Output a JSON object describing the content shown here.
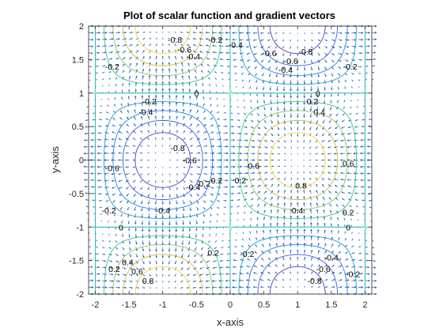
{
  "chart_data": {
    "type": "contour-quiver",
    "title": "Plot of scalar function and gradient vectors",
    "xlabel": "x-axis",
    "ylabel": "y-axis",
    "xlim": [
      -2.1,
      2.1
    ],
    "ylim": [
      -2,
      2
    ],
    "xticks": [
      -2,
      -1.5,
      -1,
      -0.5,
      0,
      0.5,
      1,
      1.5,
      2
    ],
    "xtick_labels": [
      "-2",
      "-1.5",
      "-1",
      "-0.5",
      "0",
      "0.5",
      "1",
      "1.5",
      "2"
    ],
    "yticks": [
      -2,
      -1.5,
      -1,
      -0.5,
      0,
      0.5,
      1,
      1.5,
      2
    ],
    "ytick_labels": [
      "-2",
      "-1.5",
      "-1",
      "-0.5",
      "0",
      "0.5",
      "1",
      "1.5",
      "2"
    ],
    "grid": false,
    "contour_levels": [
      -0.8,
      -0.6,
      -0.4,
      -0.2,
      0,
      0.2,
      0.4,
      0.6,
      0.8
    ],
    "contour_colors": {
      "-0.8": "#4a3fbd",
      "-0.6": "#3e5ee0",
      "-0.4": "#2f7ee8",
      "-0.2": "#1f9bd6",
      "0": "#1fb2b0",
      "0.2": "#3fc188",
      "0.4": "#8cc656",
      "0.6": "#cdbb3c",
      "0.8": "#f5d42a"
    },
    "quiver_color": "#1f5fb8",
    "quiver_grid_step": 0.1,
    "contour_labels": [
      {
        "x": -0.82,
        "y": 1.8,
        "text": "-0.8"
      },
      {
        "x": -0.68,
        "y": 1.65,
        "text": "-0.6"
      },
      {
        "x": -0.55,
        "y": 1.55,
        "text": "-0.4"
      },
      {
        "x": -1.75,
        "y": 1.4,
        "text": "-0.2"
      },
      {
        "x": -0.22,
        "y": 1.8,
        "text": "-0.2"
      },
      {
        "x": 0.08,
        "y": 1.72,
        "text": "-0.4"
      },
      {
        "x": 0.58,
        "y": 1.6,
        "text": "-0.6"
      },
      {
        "x": 1.12,
        "y": 1.62,
        "text": "-0.8"
      },
      {
        "x": 0.9,
        "y": 1.48,
        "text": "-0.6"
      },
      {
        "x": 0.82,
        "y": 1.35,
        "text": "-0.4"
      },
      {
        "x": 1.78,
        "y": 1.4,
        "text": "-0.2"
      },
      {
        "x": -0.5,
        "y": 1.0,
        "text": "0"
      },
      {
        "x": 1.3,
        "y": 1.0,
        "text": "0"
      },
      {
        "x": -1.2,
        "y": 0.88,
        "text": "-0.2"
      },
      {
        "x": -1.25,
        "y": 0.72,
        "text": "-0.4"
      },
      {
        "x": 1.22,
        "y": 0.88,
        "text": "0.2"
      },
      {
        "x": 1.32,
        "y": 0.72,
        "text": "0.4"
      },
      {
        "x": -0.78,
        "y": 0.18,
        "text": "-0.8"
      },
      {
        "x": -0.6,
        "y": 0.0,
        "text": "-0.6"
      },
      {
        "x": -1.75,
        "y": -0.12,
        "text": "-0.6"
      },
      {
        "x": 0.35,
        "y": -0.08,
        "text": "0.6"
      },
      {
        "x": 1.75,
        "y": -0.05,
        "text": "0.6"
      },
      {
        "x": -0.55,
        "y": -0.4,
        "text": "-0.4"
      },
      {
        "x": -0.4,
        "y": -0.35,
        "text": "-0.2"
      },
      {
        "x": -0.2,
        "y": -0.3,
        "text": "0.2"
      },
      {
        "x": 0.15,
        "y": -0.3,
        "text": "0.2"
      },
      {
        "x": 1.05,
        "y": -0.38,
        "text": "0.8"
      },
      {
        "x": -1.8,
        "y": -0.75,
        "text": "-0.2"
      },
      {
        "x": -1.0,
        "y": -0.75,
        "text": "-0.4"
      },
      {
        "x": 1.0,
        "y": -0.75,
        "text": "0.4"
      },
      {
        "x": 1.75,
        "y": -0.78,
        "text": "0.2"
      },
      {
        "x": -1.62,
        "y": -1.0,
        "text": "0"
      },
      {
        "x": 1.75,
        "y": -1.0,
        "text": "0"
      },
      {
        "x": -1.72,
        "y": -1.62,
        "text": "0.2"
      },
      {
        "x": -1.52,
        "y": -1.52,
        "text": "0.4"
      },
      {
        "x": -1.38,
        "y": -1.66,
        "text": "0.6"
      },
      {
        "x": -1.22,
        "y": -1.8,
        "text": "0.8"
      },
      {
        "x": -0.25,
        "y": -1.38,
        "text": "0.2"
      },
      {
        "x": 0.25,
        "y": -1.4,
        "text": "-0.2"
      },
      {
        "x": 1.5,
        "y": -1.45,
        "text": "-0.4"
      },
      {
        "x": 1.38,
        "y": -1.62,
        "text": "-0.6"
      },
      {
        "x": 1.25,
        "y": -1.8,
        "text": "-0.8"
      },
      {
        "x": 1.82,
        "y": -1.7,
        "text": "-0.2"
      }
    ]
  }
}
